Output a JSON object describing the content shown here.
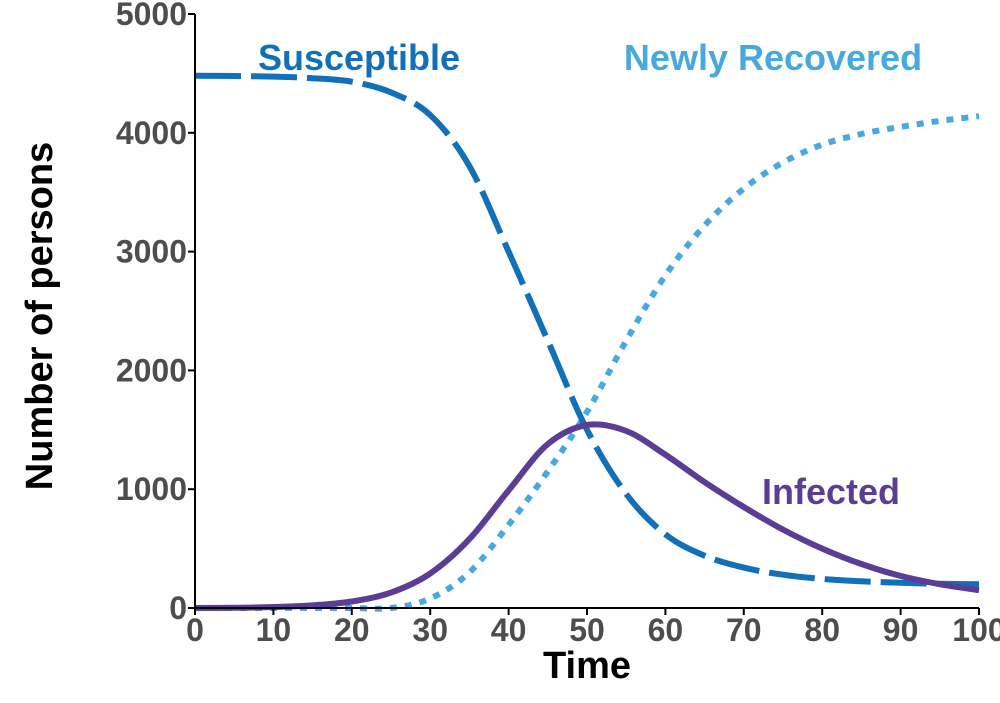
{
  "chart_data": {
    "type": "line",
    "title": "",
    "xlabel": "Time",
    "ylabel": "Number of persons",
    "xlim": [
      0,
      100
    ],
    "ylim": [
      0,
      5000
    ],
    "x_ticks": [
      0,
      10,
      20,
      30,
      40,
      50,
      60,
      70,
      80,
      90,
      100
    ],
    "y_ticks": [
      0,
      1000,
      2000,
      3000,
      4000,
      5000
    ],
    "x_tick_labels": [
      "0",
      "10",
      "20",
      "30",
      "40",
      "50",
      "60",
      "70",
      "80",
      "90",
      "100"
    ],
    "y_tick_labels": [
      "0",
      "1000",
      "2000",
      "3000",
      "4000",
      "5000"
    ],
    "grid": false,
    "legend": "inline labels",
    "x": [
      0,
      5,
      10,
      15,
      20,
      25,
      30,
      35,
      40,
      45,
      50,
      55,
      60,
      65,
      70,
      75,
      80,
      85,
      90,
      95,
      100
    ],
    "series": [
      {
        "name": "Susceptible",
        "color": "#1170b8",
        "style": "dashed",
        "values": [
          4480,
          4478,
          4473,
          4460,
          4430,
          4340,
          4150,
          3720,
          3000,
          2250,
          1500,
          960,
          620,
          440,
          340,
          280,
          245,
          225,
          212,
          204,
          200
        ]
      },
      {
        "name": "Infected",
        "color": "#5b3d96",
        "style": "solid",
        "values": [
          0,
          2,
          8,
          22,
          55,
          130,
          290,
          580,
          990,
          1380,
          1540,
          1490,
          1290,
          1060,
          850,
          660,
          500,
          370,
          270,
          200,
          150
        ]
      },
      {
        "name": "Newly Recovered",
        "color": "#47a9dd",
        "style": "dotted",
        "values": [
          0,
          0,
          0,
          0,
          0,
          0,
          80,
          300,
          700,
          1150,
          1650,
          2250,
          2800,
          3220,
          3530,
          3750,
          3900,
          3990,
          4050,
          4100,
          4140
        ]
      }
    ]
  }
}
